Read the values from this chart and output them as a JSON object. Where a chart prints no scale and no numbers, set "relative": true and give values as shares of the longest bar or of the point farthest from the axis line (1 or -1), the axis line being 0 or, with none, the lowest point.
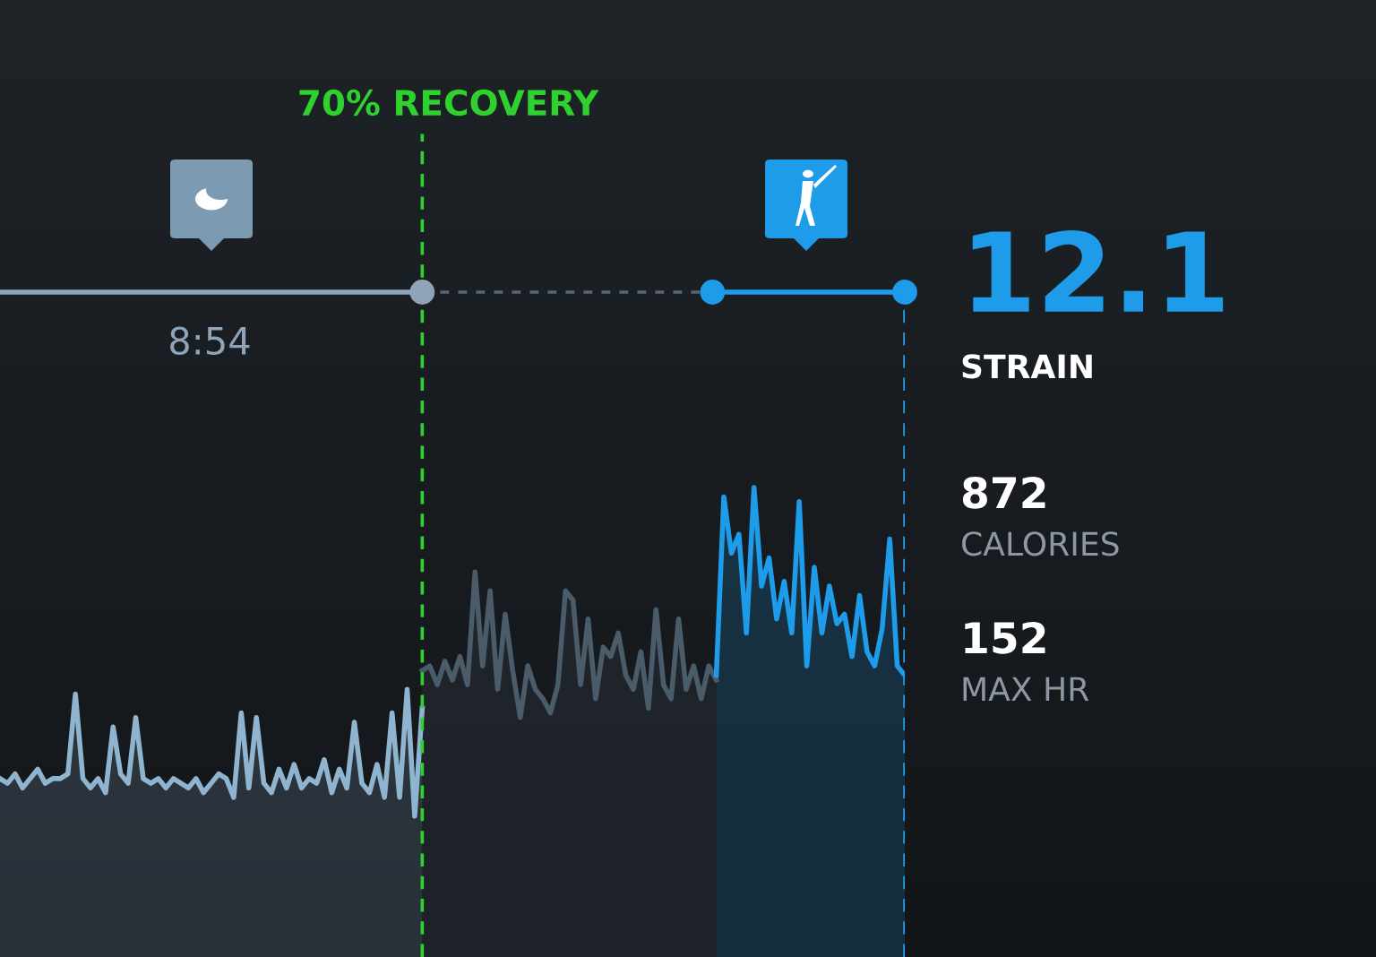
{
  "chart_data": {
    "type": "area",
    "relative": true,
    "categories": [
      null,
      null,
      null,
      null,
      null,
      null,
      null,
      null,
      null,
      null,
      null,
      null,
      null,
      null,
      null,
      null,
      null,
      null,
      null,
      null,
      null,
      null,
      null,
      null,
      null,
      null,
      null,
      null,
      null,
      null,
      null,
      null,
      null,
      null,
      null,
      null,
      null,
      null,
      null,
      null,
      null,
      null,
      null,
      null,
      null,
      null,
      null,
      null,
      null,
      null,
      null,
      null,
      null,
      null,
      null,
      null,
      null,
      null,
      null,
      null,
      null,
      null,
      null,
      null,
      null,
      null,
      null,
      null,
      null,
      null,
      null,
      null,
      null,
      null,
      null,
      null,
      null,
      null,
      null,
      null,
      null,
      null,
      null,
      null,
      null,
      null,
      null,
      null,
      null,
      null,
      null,
      null,
      null,
      null,
      null,
      null,
      null,
      null,
      null,
      null,
      null,
      null,
      null,
      null,
      null,
      null,
      null,
      null,
      null,
      null,
      null,
      null,
      null,
      null,
      null,
      null,
      null,
      null,
      null,
      null,
      null
    ],
    "series": [
      {
        "color": "#8fb4cf",
        "values": [
          0.38,
          0.37,
          0.39,
          0.36,
          0.38,
          0.4,
          0.37,
          0.38,
          0.38,
          0.39,
          0.56,
          0.38,
          0.36,
          0.38,
          0.35,
          0.49,
          0.39,
          0.37,
          0.51,
          0.38,
          0.37,
          0.38,
          0.36,
          0.38,
          0.37,
          0.36,
          0.38,
          0.35,
          0.37,
          0.39,
          0.38,
          0.34,
          0.52,
          0.36,
          0.51,
          0.37,
          0.35,
          0.4,
          0.36,
          0.41,
          0.36,
          0.38,
          0.37,
          0.42,
          0.35,
          0.4,
          0.36,
          0.5,
          0.37,
          0.35,
          0.41,
          0.34,
          0.52,
          0.34,
          0.57,
          0.3,
          0.53,
          null,
          null,
          null,
          null,
          null,
          null,
          null,
          null,
          null,
          null,
          null,
          null,
          null,
          null,
          null,
          null,
          null,
          null,
          null,
          null,
          null,
          null,
          null,
          null,
          null,
          null,
          null,
          null,
          null,
          null,
          null,
          null,
          null,
          null,
          null,
          null,
          null,
          null,
          null,
          null,
          null,
          null,
          null,
          null,
          null,
          null,
          null,
          null,
          null,
          null,
          null,
          null,
          null,
          null,
          null,
          null,
          null,
          null,
          null,
          null,
          null,
          null,
          null,
          null
        ]
      },
      {
        "color": "#4a5b69",
        "values": [
          null,
          null,
          null,
          null,
          null,
          null,
          null,
          null,
          null,
          null,
          null,
          null,
          null,
          null,
          null,
          null,
          null,
          null,
          null,
          null,
          null,
          null,
          null,
          null,
          null,
          null,
          null,
          null,
          null,
          null,
          null,
          null,
          null,
          null,
          null,
          null,
          null,
          null,
          null,
          null,
          null,
          null,
          null,
          null,
          null,
          null,
          null,
          null,
          null,
          null,
          null,
          null,
          null,
          null,
          null,
          null,
          0.61,
          0.62,
          0.58,
          0.63,
          0.59,
          0.64,
          0.58,
          0.82,
          0.62,
          0.78,
          0.57,
          0.73,
          0.61,
          0.51,
          0.62,
          0.57,
          0.55,
          0.52,
          0.58,
          0.78,
          0.76,
          0.58,
          0.72,
          0.55,
          0.66,
          0.64,
          0.69,
          0.6,
          0.57,
          0.65,
          0.53,
          0.74,
          0.58,
          0.55,
          0.72,
          0.57,
          0.62,
          0.55,
          0.62,
          0.59,
          null,
          null,
          null,
          null,
          null,
          null,
          null,
          null,
          null,
          null,
          null,
          null,
          null,
          null,
          null,
          null,
          null,
          null,
          null,
          null,
          null,
          null,
          null,
          null,
          null
        ]
      },
      {
        "color": "#1e9be9",
        "values": [
          null,
          null,
          null,
          null,
          null,
          null,
          null,
          null,
          null,
          null,
          null,
          null,
          null,
          null,
          null,
          null,
          null,
          null,
          null,
          null,
          null,
          null,
          null,
          null,
          null,
          null,
          null,
          null,
          null,
          null,
          null,
          null,
          null,
          null,
          null,
          null,
          null,
          null,
          null,
          null,
          null,
          null,
          null,
          null,
          null,
          null,
          null,
          null,
          null,
          null,
          null,
          null,
          null,
          null,
          null,
          null,
          null,
          null,
          null,
          null,
          null,
          null,
          null,
          null,
          null,
          null,
          null,
          null,
          null,
          null,
          null,
          null,
          null,
          null,
          null,
          null,
          null,
          null,
          null,
          null,
          null,
          null,
          null,
          null,
          null,
          null,
          null,
          null,
          null,
          null,
          null,
          null,
          null,
          null,
          null,
          0.6,
          0.98,
          0.86,
          0.9,
          0.69,
          1.0,
          0.79,
          0.85,
          0.72,
          0.8,
          0.69,
          0.97,
          0.62,
          0.83,
          0.69,
          0.79,
          0.71,
          0.73,
          0.64,
          0.77,
          0.65,
          0.62,
          0.7,
          0.89,
          0.62,
          0.6
        ]
      }
    ],
    "annotations": [
      "70% RECOVERY",
      "8:54",
      "12.1",
      "STRAIN",
      "872",
      "CALORIES",
      "152",
      "MAX HR"
    ]
  }
}
